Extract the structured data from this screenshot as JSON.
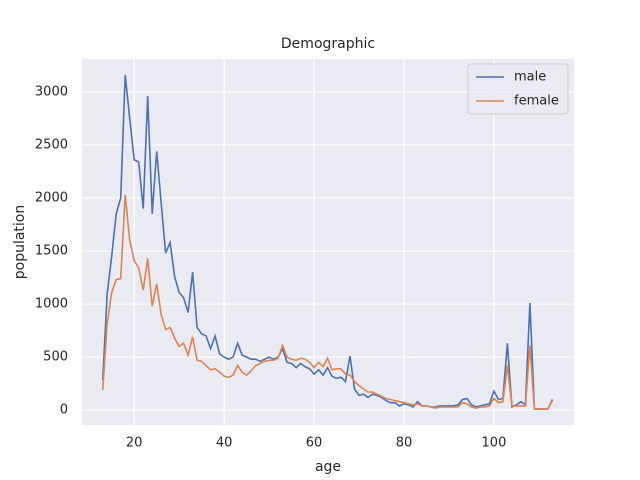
{
  "chart_data": {
    "type": "line",
    "title": "Demographic",
    "x_label": "age",
    "y_label": "population",
    "x": [
      13,
      14,
      15,
      16,
      17,
      18,
      19,
      20,
      21,
      22,
      23,
      24,
      25,
      26,
      27,
      28,
      29,
      30,
      31,
      32,
      33,
      34,
      35,
      36,
      37,
      38,
      39,
      40,
      41,
      42,
      43,
      44,
      45,
      46,
      47,
      48,
      49,
      50,
      51,
      52,
      53,
      54,
      55,
      56,
      57,
      58,
      59,
      60,
      61,
      62,
      63,
      64,
      65,
      66,
      67,
      68,
      69,
      70,
      71,
      72,
      73,
      74,
      75,
      76,
      77,
      78,
      79,
      80,
      81,
      82,
      83,
      84,
      85,
      86,
      87,
      88,
      89,
      90,
      91,
      92,
      93,
      94,
      95,
      96,
      97,
      98,
      99,
      100,
      101,
      102,
      103,
      104,
      105,
      106,
      107,
      108,
      109,
      110,
      111,
      112,
      113
    ],
    "series": [
      {
        "name": "male",
        "color": "#4c72b0",
        "values": [
          280,
          1100,
          1450,
          1850,
          2000,
          3160,
          2750,
          2360,
          2340,
          1900,
          2960,
          1850,
          2440,
          1950,
          1480,
          1580,
          1260,
          1110,
          1060,
          920,
          1300,
          780,
          720,
          700,
          580,
          700,
          530,
          500,
          480,
          500,
          630,
          520,
          500,
          480,
          480,
          460,
          480,
          500,
          480,
          500,
          580,
          450,
          440,
          400,
          440,
          410,
          390,
          340,
          380,
          330,
          400,
          320,
          300,
          310,
          270,
          510,
          200,
          140,
          150,
          120,
          150,
          140,
          120,
          90,
          70,
          70,
          40,
          60,
          50,
          30,
          80,
          40,
          40,
          30,
          30,
          40,
          40,
          40,
          40,
          50,
          100,
          110,
          50,
          30,
          40,
          50,
          60,
          180,
          100,
          110,
          630,
          30,
          50,
          80,
          50,
          1010,
          10,
          10,
          10,
          10,
          100
        ]
      },
      {
        "name": "female",
        "color": "#dd8452",
        "values": [
          190,
          820,
          1110,
          1230,
          1240,
          2030,
          1600,
          1410,
          1340,
          1130,
          1430,
          980,
          1190,
          900,
          760,
          780,
          680,
          600,
          630,
          520,
          690,
          470,
          460,
          420,
          380,
          390,
          360,
          320,
          310,
          330,
          420,
          360,
          330,
          370,
          420,
          440,
          460,
          470,
          470,
          490,
          610,
          500,
          480,
          470,
          490,
          480,
          450,
          400,
          450,
          410,
          490,
          380,
          390,
          390,
          340,
          330,
          270,
          230,
          200,
          170,
          170,
          150,
          130,
          110,
          100,
          90,
          80,
          70,
          60,
          50,
          60,
          40,
          40,
          30,
          20,
          30,
          30,
          30,
          30,
          30,
          70,
          60,
          30,
          20,
          30,
          30,
          40,
          110,
          70,
          80,
          420,
          40,
          40,
          40,
          40,
          610,
          10,
          10,
          10,
          10,
          90
        ]
      }
    ],
    "xlim": [
      8.4,
      117.8
    ],
    "ylim": [
      -140,
      3310
    ],
    "xticks": [
      20,
      40,
      60,
      80,
      100
    ],
    "yticks": [
      0,
      500,
      1000,
      1500,
      2000,
      2500,
      3000
    ],
    "grid": true,
    "legend": "upper right"
  }
}
